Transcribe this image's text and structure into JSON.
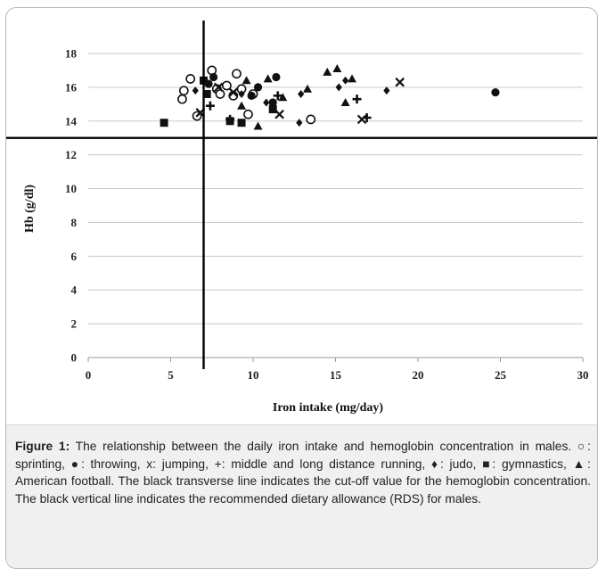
{
  "figure": {
    "caption_label": "Figure 1:",
    "caption_text": "The relationship between the daily iron intake and hemoglobin concentration in males. ○: sprinting, ●: throwing, x: jumping, +: middle and long distance running, ♦: judo, ■: gymnastics, ▲: American football. The black transverse line indicates the cut-off value for the hemoglobin concentration. The black vertical line indicates the recommended dietary allowance (RDS) for males."
  },
  "chart_data": {
    "type": "scatter",
    "title": "",
    "xlabel": "Iron intake (mg/day)",
    "ylabel": "Hb (g/dl)",
    "xlim": [
      0,
      30
    ],
    "ylim": [
      0,
      18
    ],
    "xticks": [
      0,
      5,
      10,
      15,
      20,
      25,
      30
    ],
    "yticks": [
      0,
      2,
      4,
      6,
      8,
      10,
      12,
      14,
      16,
      18
    ],
    "grid": "horizontal",
    "reference_lines": {
      "horizontal_y": 13,
      "vertical_x": 7
    },
    "series": [
      {
        "marker": "open-circle",
        "points": [
          [
            5.7,
            15.3
          ],
          [
            5.8,
            15.8
          ],
          [
            6.2,
            16.5
          ],
          [
            6.6,
            14.3
          ],
          [
            7.5,
            17.0
          ],
          [
            7.8,
            15.9
          ],
          [
            8.0,
            15.6
          ],
          [
            8.4,
            16.1
          ],
          [
            8.8,
            15.5
          ],
          [
            9.0,
            16.8
          ],
          [
            9.3,
            15.9
          ],
          [
            9.7,
            14.4
          ],
          [
            10.0,
            15.6
          ],
          [
            13.5,
            14.1
          ]
        ]
      },
      {
        "marker": "filled-circle",
        "points": [
          [
            7.3,
            16.2
          ],
          [
            7.6,
            16.6
          ],
          [
            9.9,
            15.5
          ],
          [
            10.3,
            16.0
          ],
          [
            11.4,
            16.6
          ],
          [
            11.2,
            15.1
          ],
          [
            24.7,
            15.7
          ]
        ]
      },
      {
        "marker": "x",
        "points": [
          [
            6.8,
            14.5
          ],
          [
            7.9,
            16.0
          ],
          [
            8.8,
            15.7
          ],
          [
            11.6,
            14.4
          ],
          [
            16.6,
            14.1
          ],
          [
            18.9,
            16.3
          ]
        ]
      },
      {
        "marker": "plus",
        "points": [
          [
            7.4,
            14.9
          ],
          [
            8.6,
            14.1
          ],
          [
            11.5,
            15.5
          ],
          [
            16.3,
            15.3
          ],
          [
            16.9,
            14.2
          ]
        ]
      },
      {
        "marker": "diamond",
        "points": [
          [
            6.5,
            15.8
          ],
          [
            9.3,
            15.6
          ],
          [
            10.8,
            15.1
          ],
          [
            12.8,
            13.9
          ],
          [
            12.9,
            15.6
          ],
          [
            15.2,
            16.0
          ],
          [
            15.6,
            16.4
          ],
          [
            18.1,
            15.8
          ]
        ]
      },
      {
        "marker": "square",
        "points": [
          [
            4.6,
            13.9
          ],
          [
            7.0,
            16.4
          ],
          [
            7.2,
            15.6
          ],
          [
            8.6,
            14.0
          ],
          [
            9.3,
            13.9
          ],
          [
            11.2,
            14.7
          ]
        ]
      },
      {
        "marker": "triangle",
        "points": [
          [
            9.3,
            14.9
          ],
          [
            9.6,
            16.4
          ],
          [
            10.3,
            13.7
          ],
          [
            10.9,
            16.5
          ],
          [
            11.8,
            15.4
          ],
          [
            13.3,
            15.9
          ],
          [
            14.5,
            16.9
          ],
          [
            15.1,
            17.1
          ],
          [
            15.6,
            15.1
          ],
          [
            16.0,
            16.5
          ]
        ]
      }
    ]
  }
}
